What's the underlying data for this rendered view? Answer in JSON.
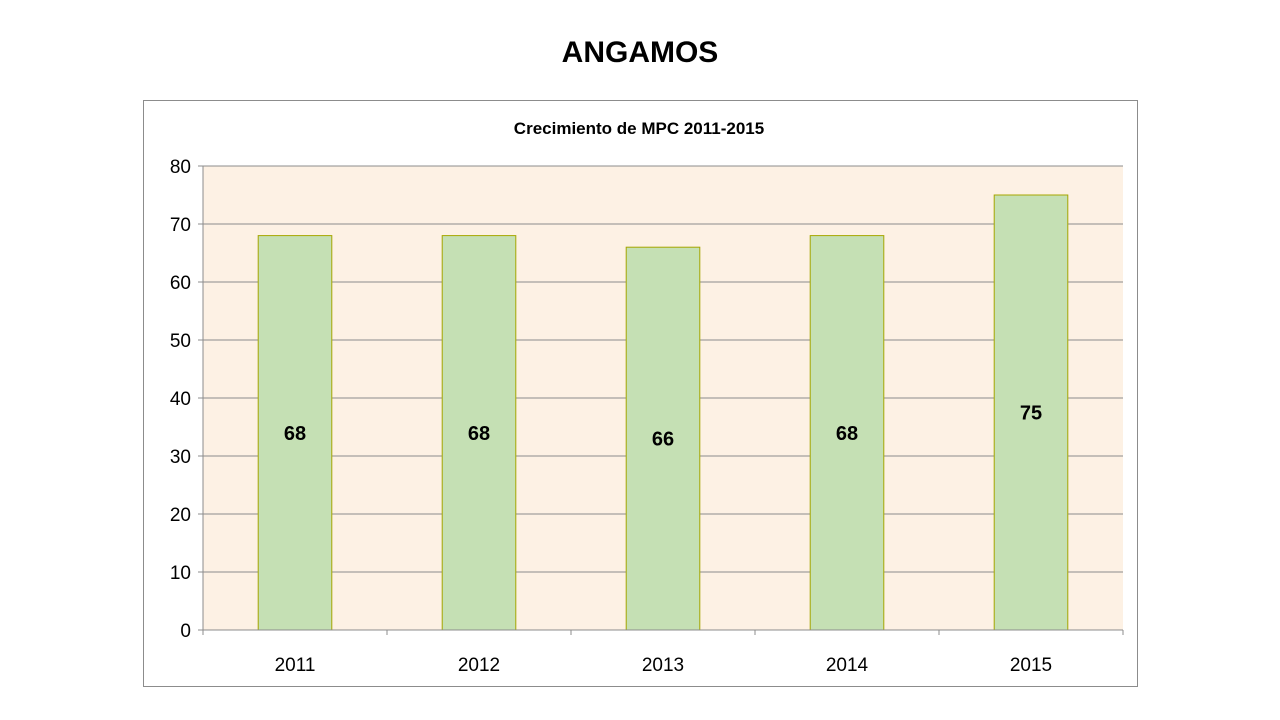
{
  "slide": {
    "title": "ANGAMOS"
  },
  "colors": {
    "bar_fill": "#c5e0b4",
    "bar_stroke": "#a6a600",
    "plot_bg": "#fdf1e4",
    "grid": "#8c8c8c"
  },
  "chart_data": {
    "type": "bar",
    "title": "Crecimiento de MPC 2011-2015",
    "categories": [
      "2011",
      "2012",
      "2013",
      "2014",
      "2015"
    ],
    "values": [
      68,
      68,
      66,
      68,
      75
    ],
    "data_labels": [
      "68",
      "68",
      "66",
      "68",
      "75"
    ],
    "xlabel": "",
    "ylabel": "",
    "ylim": [
      0,
      80
    ],
    "yticks": [
      0,
      10,
      20,
      30,
      40,
      50,
      60,
      70,
      80
    ],
    "ytick_labels": [
      "0",
      "10",
      "20",
      "30",
      "40",
      "50",
      "60",
      "70",
      "80"
    ],
    "grid": true,
    "legend": "none"
  }
}
